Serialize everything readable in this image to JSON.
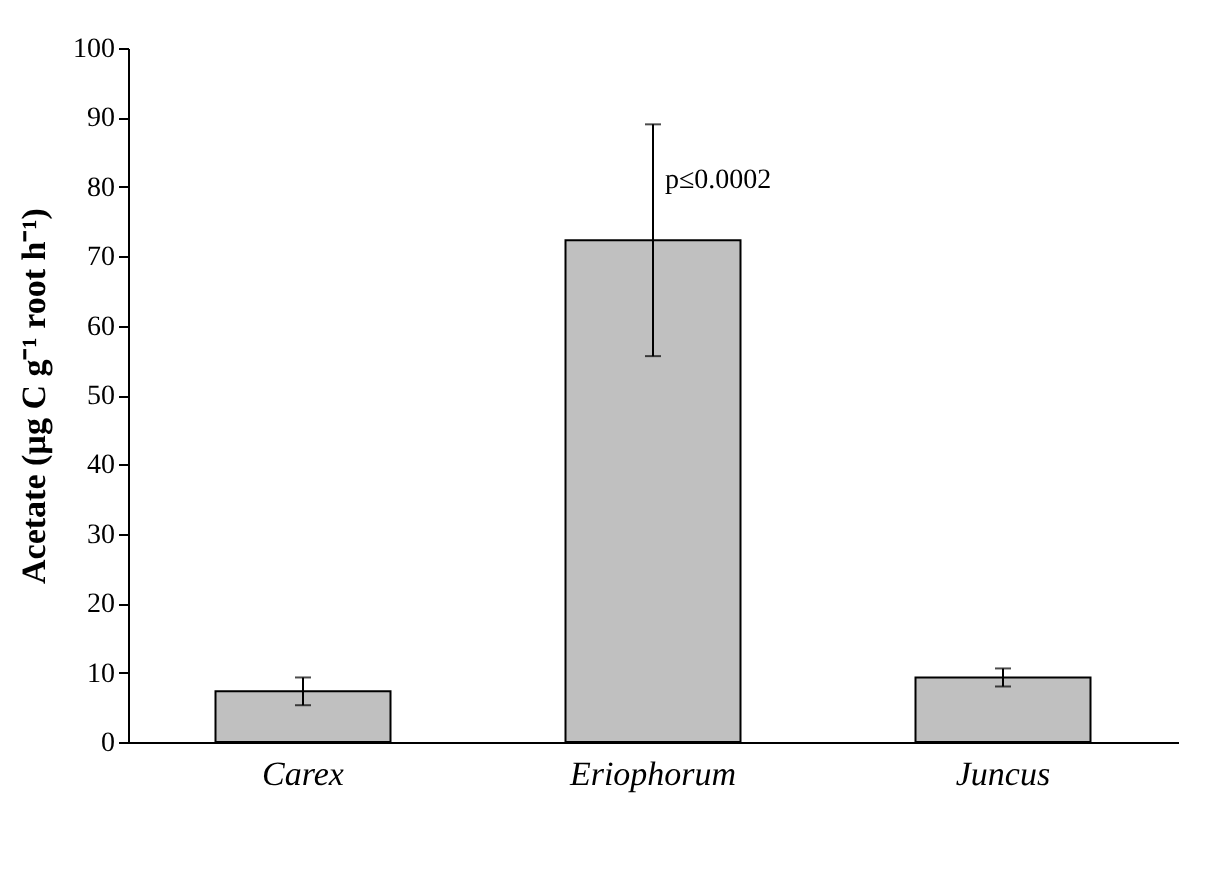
{
  "chart_data": {
    "type": "bar",
    "ylabel": "Acetate  (µg C g⁻¹ root h⁻¹)",
    "categories": [
      "Carex",
      "Eriophorum",
      "Juncus"
    ],
    "values": [
      7.3,
      72.3,
      9.3
    ],
    "errors": [
      2.0,
      16.7,
      1.3
    ],
    "color": "#c0c0c0",
    "ylim": [
      0,
      100
    ],
    "yticks": [
      0,
      10,
      20,
      30,
      40,
      50,
      60,
      70,
      80,
      90,
      100
    ],
    "annotations": [
      {
        "text": "p≤0.0002",
        "x": "Eriophorum",
        "y": 81
      }
    ],
    "grid": false
  }
}
